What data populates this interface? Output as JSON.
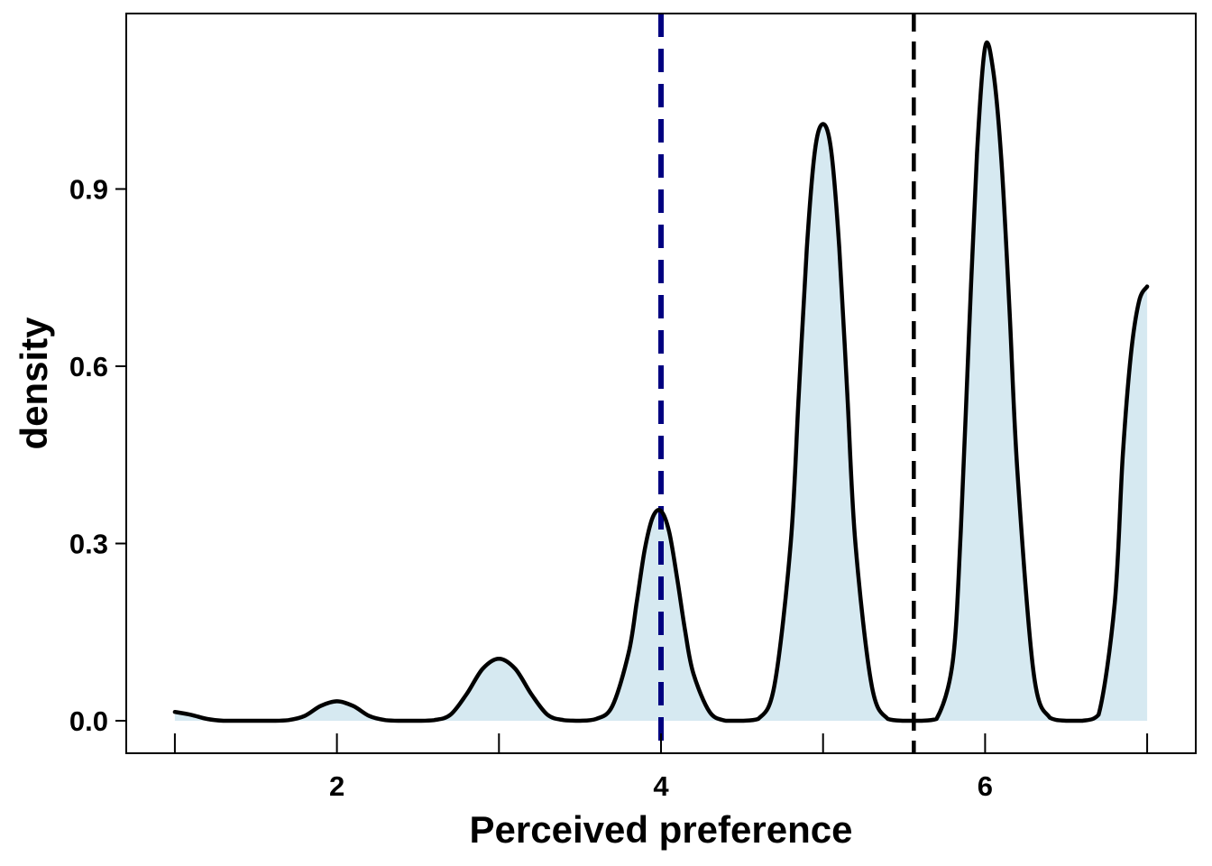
{
  "chart_data": {
    "type": "area",
    "xlabel": "Perceived preference",
    "ylabel": "density",
    "xlim": [
      0.7,
      7.3
    ],
    "ylim": [
      -0.055,
      1.197
    ],
    "x_ticks": [
      1,
      2,
      3,
      4,
      5,
      6,
      7
    ],
    "x_tick_labels": [
      "",
      "2",
      "4",
      "6",
      ""
    ],
    "x_labeled_ticks": [
      2,
      4,
      6
    ],
    "y_ticks": [
      0.0,
      0.3,
      0.6,
      0.9
    ],
    "y_tick_labels": [
      "0.0",
      "0.3",
      "0.6",
      "0.9"
    ],
    "grid": false,
    "series": [
      {
        "fill_color": "#d6e9f1",
        "line_color": "#000000",
        "x": [
          1.0,
          1.1,
          1.2,
          1.3,
          1.4,
          1.5,
          1.6,
          1.7,
          1.8,
          1.9,
          2.0,
          2.1,
          2.2,
          2.3,
          2.4,
          2.5,
          2.6,
          2.7,
          2.8,
          2.9,
          3.0,
          3.1,
          3.2,
          3.3,
          3.4,
          3.5,
          3.6,
          3.7,
          3.8,
          3.85,
          3.9,
          3.95,
          4.0,
          4.05,
          4.1,
          4.15,
          4.2,
          4.3,
          4.4,
          4.5,
          4.6,
          4.7,
          4.8,
          4.85,
          4.9,
          4.95,
          5.0,
          5.05,
          5.1,
          5.15,
          5.2,
          5.3,
          5.4,
          5.5,
          5.6,
          5.7,
          5.8,
          5.85,
          5.9,
          5.95,
          6.0,
          6.05,
          6.1,
          6.15,
          6.2,
          6.3,
          6.4,
          6.5,
          6.6,
          6.7,
          6.8,
          6.85,
          6.9,
          6.95,
          7.0
        ],
        "y": [
          0.015,
          0.01,
          0.003,
          0.0,
          0.0,
          0.0,
          0.0,
          0.001,
          0.008,
          0.025,
          0.033,
          0.025,
          0.008,
          0.001,
          0.0,
          0.0,
          0.001,
          0.01,
          0.045,
          0.088,
          0.105,
          0.088,
          0.045,
          0.01,
          0.001,
          0.0,
          0.003,
          0.025,
          0.115,
          0.2,
          0.29,
          0.345,
          0.355,
          0.32,
          0.24,
          0.15,
          0.08,
          0.015,
          0.0,
          0.0,
          0.003,
          0.06,
          0.3,
          0.55,
          0.8,
          0.965,
          1.01,
          0.965,
          0.8,
          0.55,
          0.3,
          0.06,
          0.003,
          0.0,
          0.0,
          0.003,
          0.1,
          0.32,
          0.65,
          0.96,
          1.14,
          1.1,
          0.95,
          0.7,
          0.42,
          0.08,
          0.005,
          0.0,
          0.0,
          0.01,
          0.2,
          0.45,
          0.62,
          0.71,
          0.735
        ]
      }
    ],
    "reference_lines": [
      {
        "x": 4.0,
        "color": "#000080"
      },
      {
        "x": 5.56,
        "color": "#000000"
      }
    ]
  }
}
